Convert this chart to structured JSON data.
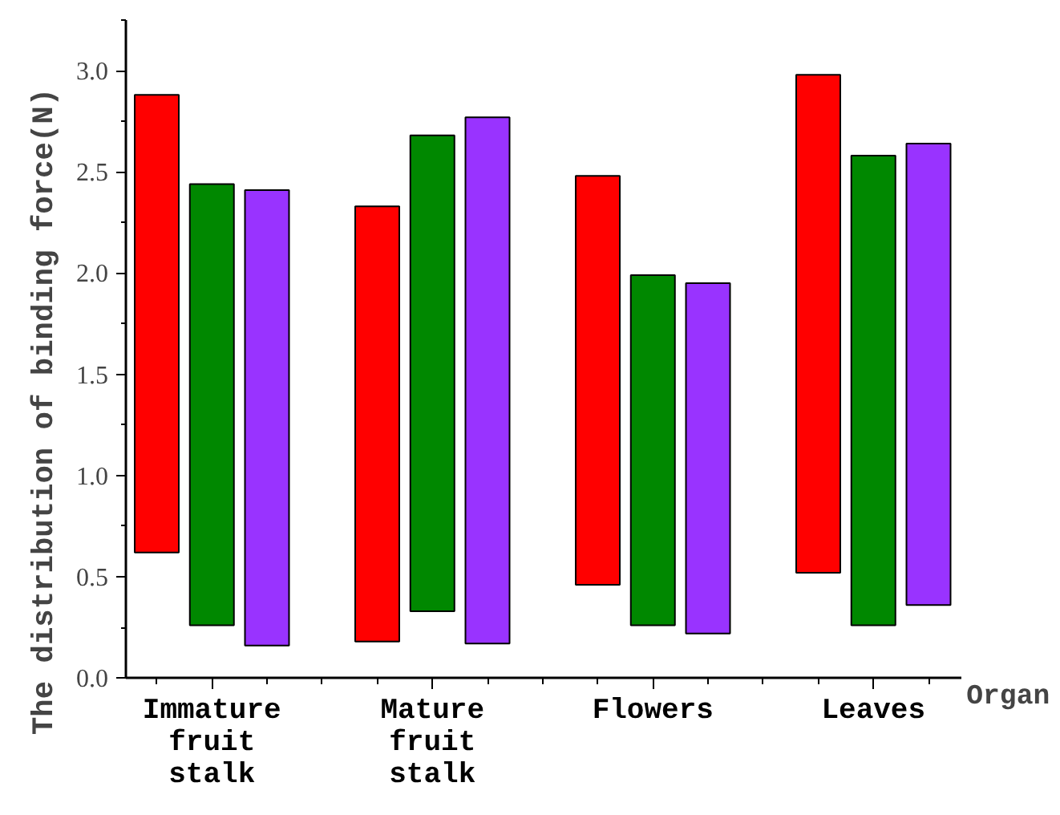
{
  "chart_data": {
    "type": "bar",
    "ylabel": "The distribution of binding force(N)",
    "xlabel": "Organ",
    "categories": [
      "Immature fruit stalk",
      "Mature fruit stalk",
      "Flowers",
      "Leaves"
    ],
    "series": [
      {
        "color": "#ff0000",
        "base": [
          0.62,
          0.18,
          0.46,
          0.52
        ],
        "values": [
          2.26,
          2.15,
          2.02,
          2.46
        ]
      },
      {
        "color": "#008800",
        "base": [
          0.26,
          0.33,
          0.26,
          0.26
        ],
        "values": [
          2.18,
          2.35,
          1.73,
          2.32
        ]
      },
      {
        "color": "#9933ff",
        "base": [
          0.16,
          0.17,
          0.22,
          0.36
        ],
        "values": [
          2.25,
          2.6,
          1.73,
          2.28
        ]
      }
    ],
    "ylim": [
      0,
      3.25
    ],
    "yticks": [
      {
        "value": 0,
        "label": "0.0"
      },
      {
        "value": 0.5,
        "label": "0.5"
      },
      {
        "value": 1,
        "label": "1.0"
      },
      {
        "value": 1.5,
        "label": "1.5"
      },
      {
        "value": 2,
        "label": "2.0"
      },
      {
        "value": 2.5,
        "label": "2.5"
      },
      {
        "value": 3,
        "label": "3.0"
      }
    ],
    "grid": false
  }
}
